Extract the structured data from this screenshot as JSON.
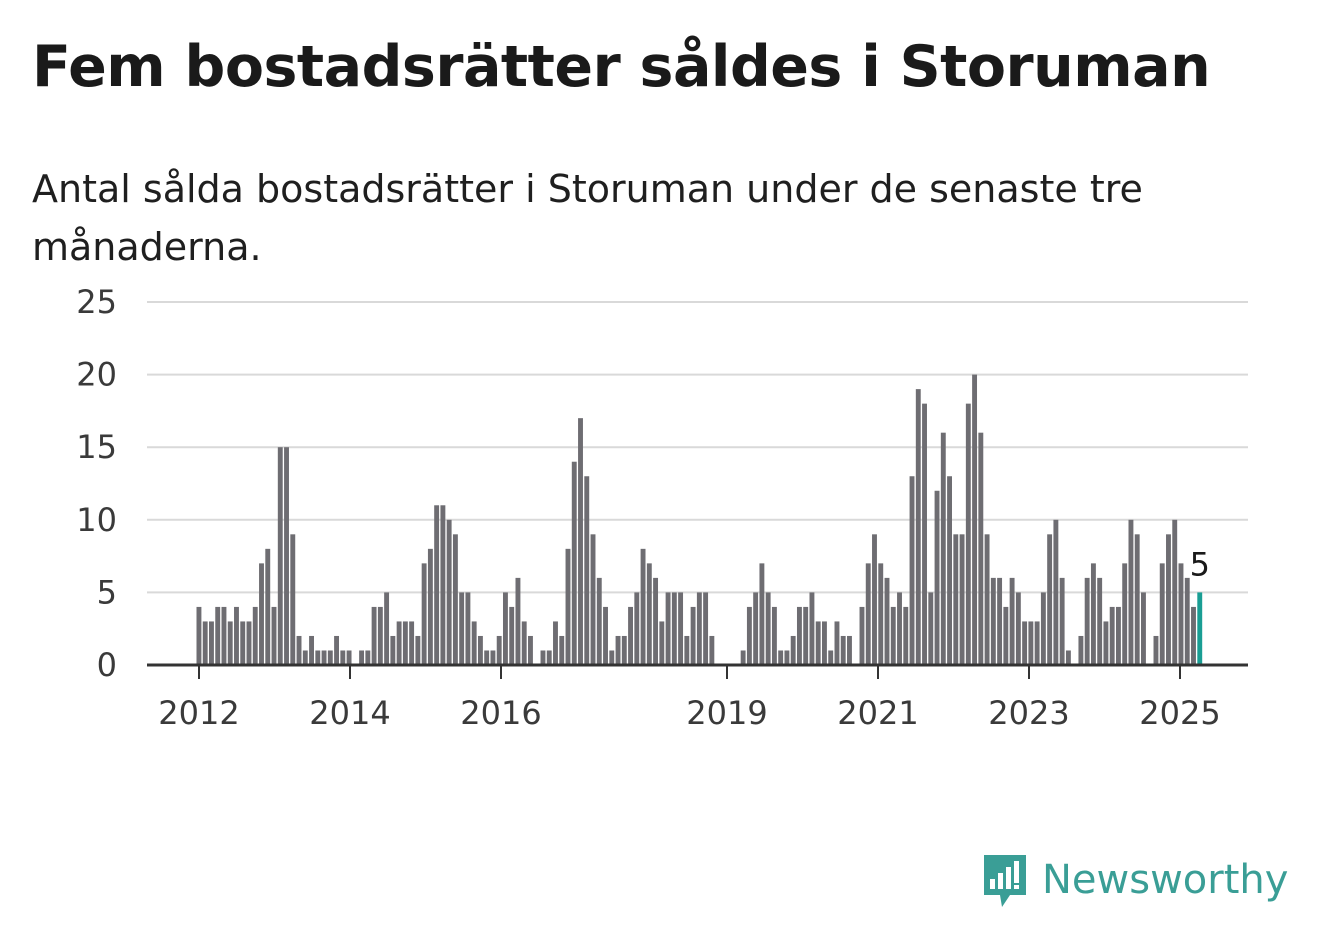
{
  "title": "Fem bostadsrätter såldes i Storuman",
  "subtitle": "Antal sålda bostadsrätter i Storuman under de senaste tre månaderna.",
  "brand": {
    "name": "Newsworthy",
    "color": "#3a9e96"
  },
  "colors": {
    "bar": "#6e6d72",
    "highlight": "#1a9e94",
    "grid": "#d9d9d9",
    "axis": "#333333"
  },
  "chart_data": {
    "type": "bar",
    "y_ticks": [
      0,
      5,
      10,
      15,
      20,
      25
    ],
    "ylim": [
      0,
      25
    ],
    "x_ticks": [
      "2012",
      "2014",
      "2016",
      "2019",
      "2021",
      "2023",
      "2025"
    ],
    "annotation": "5",
    "values": [
      4,
      3,
      3,
      4,
      4,
      3,
      4,
      3,
      3,
      4,
      7,
      8,
      4,
      15,
      15,
      9,
      2,
      1,
      2,
      1,
      1,
      1,
      2,
      1,
      1,
      0,
      1,
      1,
      4,
      4,
      5,
      2,
      3,
      3,
      3,
      2,
      7,
      8,
      11,
      11,
      10,
      9,
      5,
      5,
      3,
      2,
      1,
      1,
      2,
      5,
      4,
      6,
      3,
      2,
      0,
      1,
      1,
      3,
      2,
      8,
      14,
      17,
      13,
      9,
      6,
      4,
      1,
      2,
      2,
      4,
      5,
      8,
      7,
      6,
      3,
      5,
      5,
      5,
      2,
      4,
      5,
      5,
      2,
      0,
      0,
      0,
      0,
      1,
      4,
      5,
      7,
      5,
      4,
      1,
      1,
      2,
      4,
      4,
      5,
      3,
      3,
      1,
      3,
      2,
      2,
      0,
      4,
      7,
      9,
      7,
      6,
      4,
      5,
      4,
      13,
      19,
      18,
      5,
      12,
      16,
      13,
      9,
      9,
      18,
      20,
      16,
      9,
      6,
      6,
      4,
      6,
      5,
      3,
      3,
      3,
      5,
      9,
      10,
      6,
      1,
      0,
      2,
      6,
      7,
      6,
      3,
      4,
      4,
      7,
      10,
      9,
      5,
      0,
      2,
      7,
      9,
      10,
      7,
      6,
      4,
      5
    ],
    "highlight_last": true
  }
}
